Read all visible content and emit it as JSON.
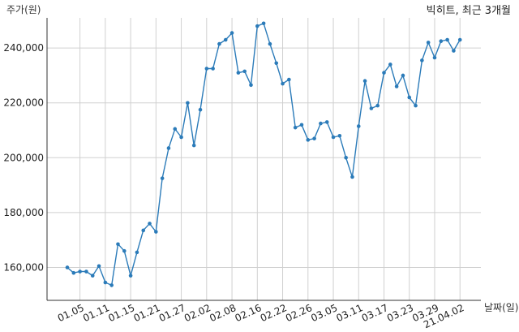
{
  "chart_data": {
    "type": "line",
    "title": "빅히트, 최근 3개월",
    "ylabel": "주가(원)",
    "xlabel": "날짜(일)",
    "ylim": [
      148000,
      251000
    ],
    "grid": true,
    "line_color": "#2b7bb9",
    "grid_color": "#d0d0d0",
    "yticks": [
      160000,
      180000,
      200000,
      220000,
      240000
    ],
    "ytick_labels": [
      "160,000",
      "180,000",
      "200,000",
      "220,000",
      "240,000"
    ],
    "xticks": [
      {
        "index": 2,
        "label": "01.05"
      },
      {
        "index": 6,
        "label": "01.11"
      },
      {
        "index": 10,
        "label": "01.15"
      },
      {
        "index": 14,
        "label": "01.21"
      },
      {
        "index": 18,
        "label": "01.27"
      },
      {
        "index": 22,
        "label": "02.02"
      },
      {
        "index": 26,
        "label": "02.08"
      },
      {
        "index": 30,
        "label": "02.16"
      },
      {
        "index": 34,
        "label": "02.22"
      },
      {
        "index": 38,
        "label": "02.26"
      },
      {
        "index": 42,
        "label": "03.05"
      },
      {
        "index": 46,
        "label": "03.11"
      },
      {
        "index": 50,
        "label": "03.17"
      },
      {
        "index": 54,
        "label": "03.23"
      },
      {
        "index": 58,
        "label": "03.29"
      },
      {
        "index": 62,
        "label": "21.04.02"
      }
    ],
    "values": [
      160000,
      158000,
      158500,
      158500,
      157000,
      160500,
      154500,
      153500,
      168500,
      166000,
      157000,
      165500,
      173500,
      176000,
      173000,
      192500,
      203500,
      210500,
      207500,
      220000,
      204500,
      217500,
      232500,
      232500,
      241500,
      243000,
      245500,
      231000,
      231500,
      226500,
      248000,
      249000,
      241500,
      234500,
      227000,
      228500,
      211000,
      212000,
      206500,
      207000,
      212500,
      213000,
      207500,
      208000,
      200000,
      193000,
      211500,
      228000,
      218000,
      219000,
      231000,
      234000,
      226000,
      230000,
      222000,
      219000,
      235500,
      242000,
      236500,
      242500,
      243000,
      239000,
      243000
    ]
  }
}
